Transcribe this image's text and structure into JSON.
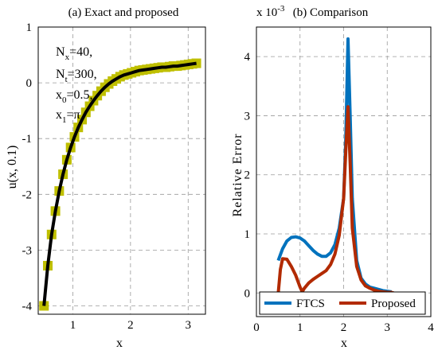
{
  "chart_data": [
    {
      "type": "line",
      "title": "(a) Exact and proposed",
      "xlabel": "x",
      "ylabel": "u(x, 0.1)",
      "xlim": [
        0.4,
        3.3
      ],
      "ylim": [
        -4.15,
        1.0
      ],
      "xticks": [
        "1",
        "2",
        "3"
      ],
      "yticks": [
        "1",
        "0",
        "-1",
        "-2",
        "-3",
        "-4"
      ],
      "grid": true,
      "annotation": {
        "nx": {
          "base": "N",
          "sub": "x",
          "rest": "=40,"
        },
        "nt": {
          "base": "N",
          "sub": "t",
          "rest": "=300,"
        },
        "x0": {
          "base": "x",
          "sub": "0",
          "rest": "=0.5,"
        },
        "x1": {
          "base": "x",
          "sub": "1",
          "rest": "=π"
        }
      },
      "series": [
        {
          "name": "",
          "style": "markers",
          "color": "#bfbf00"
        },
        {
          "name": "",
          "style": "line",
          "color": "#000000"
        }
      ],
      "x": [
        0.5,
        0.566,
        0.632,
        0.698,
        0.764,
        0.83,
        0.896,
        0.962,
        1.028,
        1.094,
        1.16,
        1.226,
        1.292,
        1.358,
        1.424,
        1.49,
        1.556,
        1.622,
        1.688,
        1.754,
        1.82,
        1.886,
        1.952,
        2.018,
        2.084,
        2.15,
        2.216,
        2.282,
        2.348,
        2.414,
        2.48,
        2.546,
        2.612,
        2.678,
        2.744,
        2.81,
        2.876,
        2.942,
        3.008,
        3.074,
        3.142
      ],
      "y": [
        -4.0,
        -3.28,
        -2.72,
        -2.3,
        -1.94,
        -1.64,
        -1.38,
        -1.16,
        -0.97,
        -0.8,
        -0.66,
        -0.53,
        -0.42,
        -0.32,
        -0.23,
        -0.15,
        -0.08,
        -0.02,
        0.03,
        0.07,
        0.11,
        0.14,
        0.16,
        0.18,
        0.2,
        0.22,
        0.23,
        0.24,
        0.25,
        0.26,
        0.27,
        0.28,
        0.28,
        0.29,
        0.3,
        0.3,
        0.31,
        0.32,
        0.33,
        0.34,
        0.35
      ]
    },
    {
      "type": "line",
      "title": "(b) Comparison",
      "xlabel": "x",
      "ylabel": "Relative Error",
      "yscale_label": "x 10",
      "yscale_exp": "-3",
      "xlim": [
        0,
        4
      ],
      "ylim": [
        -0.4,
        4.5
      ],
      "xticks": [
        "0",
        "1",
        "2",
        "3",
        "4"
      ],
      "yticks": [
        "4",
        "3",
        "2",
        "1",
        "0"
      ],
      "grid": true,
      "legend": "bottom",
      "series": [
        {
          "name": "FTCS",
          "color": "#0072bd",
          "x": [
            0.5,
            0.6,
            0.7,
            0.8,
            0.9,
            1.0,
            1.1,
            1.2,
            1.3,
            1.4,
            1.5,
            1.6,
            1.7,
            1.8,
            1.9,
            2.0,
            2.05,
            2.1,
            2.15,
            2.2,
            2.3,
            2.4,
            2.5,
            2.6,
            2.7,
            2.8,
            2.9,
            3.0,
            3.1
          ],
          "y": [
            0.55,
            0.75,
            0.88,
            0.94,
            0.95,
            0.93,
            0.88,
            0.8,
            0.72,
            0.66,
            0.62,
            0.62,
            0.68,
            0.82,
            1.1,
            1.6,
            2.6,
            4.3,
            3.0,
            1.6,
            0.55,
            0.25,
            0.15,
            0.1,
            0.08,
            0.06,
            0.04,
            0.03,
            0.02
          ]
        },
        {
          "name": "Proposed",
          "color": "#b22a00",
          "x": [
            0.5,
            0.55,
            0.6,
            0.7,
            0.8,
            0.9,
            1.0,
            1.05,
            1.1,
            1.2,
            1.3,
            1.4,
            1.5,
            1.6,
            1.7,
            1.8,
            1.9,
            2.0,
            2.05,
            2.1,
            2.15,
            2.2,
            2.3,
            2.4,
            2.5,
            2.6,
            2.7,
            2.8,
            2.9,
            3.0,
            3.1,
            3.15
          ],
          "y": [
            0.0,
            0.4,
            0.58,
            0.57,
            0.45,
            0.3,
            0.1,
            0.02,
            0.08,
            0.17,
            0.23,
            0.28,
            0.33,
            0.38,
            0.48,
            0.66,
            0.98,
            1.6,
            2.4,
            3.15,
            2.2,
            1.1,
            0.45,
            0.22,
            0.12,
            0.08,
            0.05,
            0.03,
            0.02,
            0.01,
            0.01,
            0.0
          ]
        }
      ]
    }
  ]
}
